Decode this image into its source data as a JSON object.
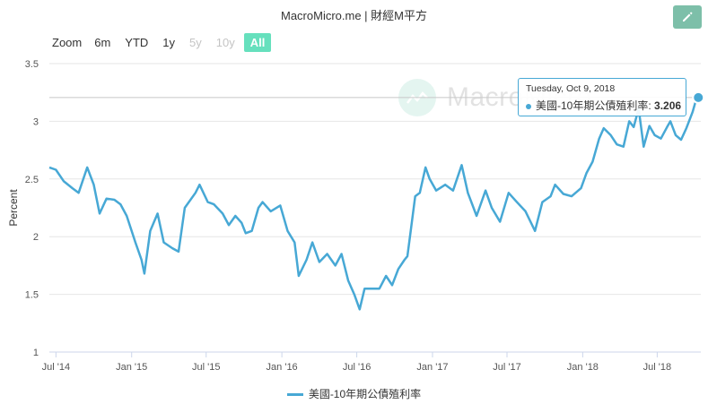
{
  "header": {
    "title": "MacroMicro.me | 財經M平方",
    "edit_icon": "pencil-icon"
  },
  "zoom": {
    "label": "Zoom",
    "buttons": [
      {
        "label": "6m",
        "state": "normal"
      },
      {
        "label": "YTD",
        "state": "normal"
      },
      {
        "label": "1y",
        "state": "normal"
      },
      {
        "label": "5y",
        "state": "disabled"
      },
      {
        "label": "10y",
        "state": "disabled"
      },
      {
        "label": "All",
        "state": "active"
      }
    ]
  },
  "watermark": {
    "text": "MacroMicro",
    "icon": "chart-logo-icon"
  },
  "tooltip": {
    "date": "Tuesday, Oct 9, 2018",
    "series": "美國-10年期公債殖利率",
    "separator": ": ",
    "value": "3.206"
  },
  "legend": {
    "label": "美國-10年期公債殖利率"
  },
  "colors": {
    "series": "#47a8d5",
    "accent": "#66e0bd",
    "edit_button": "#7dbfa9"
  },
  "chart_data": {
    "type": "line",
    "ylabel": "Percent",
    "ylim": [
      1,
      3.5
    ],
    "yticks": [
      "1",
      "1.5",
      "2",
      "2.5",
      "3",
      "3.5"
    ],
    "xticks": [
      "Jul '14",
      "Jan '15",
      "Jul '15",
      "Jan '16",
      "Jul '16",
      "Jan '17",
      "Jul '17",
      "Jan '18",
      "Jul '18"
    ],
    "xrange": [
      "2014-06-15",
      "2018-10-15"
    ],
    "grid": true,
    "legend_position": "bottom",
    "series": [
      {
        "name": "美國-10年期公債殖利率",
        "points": [
          [
            "2014-06-15",
            2.6
          ],
          [
            "2014-07-01",
            2.58
          ],
          [
            "2014-07-20",
            2.48
          ],
          [
            "2014-08-10",
            2.42
          ],
          [
            "2014-08-25",
            2.38
          ],
          [
            "2014-09-15",
            2.6
          ],
          [
            "2014-10-01",
            2.45
          ],
          [
            "2014-10-15",
            2.2
          ],
          [
            "2014-11-01",
            2.33
          ],
          [
            "2014-11-20",
            2.32
          ],
          [
            "2014-12-05",
            2.28
          ],
          [
            "2014-12-20",
            2.18
          ],
          [
            "2015-01-10",
            1.95
          ],
          [
            "2015-01-25",
            1.8
          ],
          [
            "2015-02-01",
            1.68
          ],
          [
            "2015-02-15",
            2.05
          ],
          [
            "2015-03-05",
            2.2
          ],
          [
            "2015-03-20",
            1.95
          ],
          [
            "2015-04-10",
            1.9
          ],
          [
            "2015-04-25",
            1.87
          ],
          [
            "2015-05-10",
            2.25
          ],
          [
            "2015-06-05",
            2.38
          ],
          [
            "2015-06-15",
            2.45
          ],
          [
            "2015-07-05",
            2.3
          ],
          [
            "2015-07-20",
            2.28
          ],
          [
            "2015-08-10",
            2.2
          ],
          [
            "2015-08-25",
            2.1
          ],
          [
            "2015-09-10",
            2.18
          ],
          [
            "2015-09-25",
            2.12
          ],
          [
            "2015-10-05",
            2.03
          ],
          [
            "2015-10-20",
            2.05
          ],
          [
            "2015-11-05",
            2.25
          ],
          [
            "2015-11-15",
            2.3
          ],
          [
            "2015-12-05",
            2.22
          ],
          [
            "2015-12-28",
            2.27
          ],
          [
            "2016-01-15",
            2.05
          ],
          [
            "2016-02-01",
            1.95
          ],
          [
            "2016-02-11",
            1.66
          ],
          [
            "2016-03-01",
            1.8
          ],
          [
            "2016-03-15",
            1.95
          ],
          [
            "2016-04-01",
            1.78
          ],
          [
            "2016-04-20",
            1.85
          ],
          [
            "2016-05-10",
            1.75
          ],
          [
            "2016-05-25",
            1.85
          ],
          [
            "2016-06-10",
            1.62
          ],
          [
            "2016-06-25",
            1.5
          ],
          [
            "2016-07-08",
            1.37
          ],
          [
            "2016-07-20",
            1.55
          ],
          [
            "2016-08-10",
            1.55
          ],
          [
            "2016-08-25",
            1.55
          ],
          [
            "2016-09-10",
            1.66
          ],
          [
            "2016-09-25",
            1.58
          ],
          [
            "2016-10-10",
            1.72
          ],
          [
            "2016-10-25",
            1.8
          ],
          [
            "2016-11-01",
            1.83
          ],
          [
            "2016-11-09",
            2.05
          ],
          [
            "2016-11-20",
            2.35
          ],
          [
            "2016-12-01",
            2.38
          ],
          [
            "2016-12-15",
            2.6
          ],
          [
            "2016-12-25",
            2.5
          ],
          [
            "2017-01-10",
            2.4
          ],
          [
            "2017-02-01",
            2.45
          ],
          [
            "2017-02-20",
            2.4
          ],
          [
            "2017-03-13",
            2.62
          ],
          [
            "2017-03-28",
            2.38
          ],
          [
            "2017-04-18",
            2.18
          ],
          [
            "2017-05-10",
            2.4
          ],
          [
            "2017-05-25",
            2.25
          ],
          [
            "2017-06-14",
            2.13
          ],
          [
            "2017-07-05",
            2.38
          ],
          [
            "2017-07-25",
            2.3
          ],
          [
            "2017-08-15",
            2.22
          ],
          [
            "2017-09-07",
            2.05
          ],
          [
            "2017-09-25",
            2.3
          ],
          [
            "2017-10-15",
            2.35
          ],
          [
            "2017-10-26",
            2.45
          ],
          [
            "2017-11-15",
            2.37
          ],
          [
            "2017-12-05",
            2.35
          ],
          [
            "2017-12-28",
            2.42
          ],
          [
            "2018-01-10",
            2.55
          ],
          [
            "2018-01-25",
            2.65
          ],
          [
            "2018-02-10",
            2.85
          ],
          [
            "2018-02-21",
            2.94
          ],
          [
            "2018-03-10",
            2.88
          ],
          [
            "2018-03-25",
            2.8
          ],
          [
            "2018-04-10",
            2.78
          ],
          [
            "2018-04-24",
            3.0
          ],
          [
            "2018-05-05",
            2.95
          ],
          [
            "2018-05-17",
            3.11
          ],
          [
            "2018-05-29",
            2.78
          ],
          [
            "2018-06-12",
            2.96
          ],
          [
            "2018-06-25",
            2.88
          ],
          [
            "2018-07-10",
            2.85
          ],
          [
            "2018-07-25",
            2.95
          ],
          [
            "2018-08-02",
            3.0
          ],
          [
            "2018-08-15",
            2.88
          ],
          [
            "2018-08-28",
            2.84
          ],
          [
            "2018-09-10",
            2.94
          ],
          [
            "2018-09-25",
            3.08
          ],
          [
            "2018-10-03",
            3.18
          ],
          [
            "2018-10-09",
            3.206
          ]
        ]
      }
    ],
    "hover": {
      "date": "2018-10-09",
      "value": 3.206
    }
  }
}
